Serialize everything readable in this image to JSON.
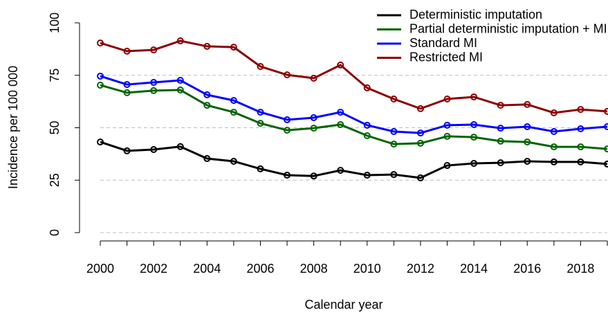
{
  "chart_data": {
    "type": "line",
    "x": [
      2000,
      2001,
      2002,
      2003,
      2004,
      2005,
      2006,
      2007,
      2008,
      2009,
      2010,
      2011,
      2012,
      2013,
      2014,
      2015,
      2016,
      2017,
      2018,
      2019
    ],
    "series": [
      {
        "name": "Deterministic imputation",
        "color": "#000000",
        "values": [
          43.2,
          39,
          39.6,
          41,
          35.3,
          34,
          30.4,
          27.4,
          27,
          29.7,
          27.4,
          27.7,
          26.1,
          32,
          33,
          33.3,
          34,
          33.7,
          33.7,
          32.7
        ]
      },
      {
        "name": "Partial deterministic imputation + MI",
        "color": "#006400",
        "values": [
          70.3,
          66.7,
          67.7,
          68,
          60.7,
          57.4,
          52.1,
          48.8,
          49.8,
          51.5,
          46.2,
          42.2,
          42.6,
          45.9,
          45.5,
          43.6,
          43.2,
          40.9,
          40.9,
          39.9
        ]
      },
      {
        "name": "Standard MI",
        "color": "#0000ff",
        "values": [
          74.6,
          70.6,
          71.6,
          72.6,
          65.7,
          63,
          57.4,
          53.8,
          54.8,
          57.4,
          51.2,
          48.2,
          47.5,
          51.2,
          51.5,
          49.8,
          50.5,
          48.2,
          49.5,
          50.5
        ]
      },
      {
        "name": "Restricted MI",
        "color": "#8b0000",
        "values": [
          90.4,
          86.5,
          87.1,
          91.4,
          88.8,
          88.4,
          79.2,
          75.2,
          73.6,
          79.9,
          69,
          63.7,
          59.1,
          63.7,
          64.7,
          60.7,
          61.1,
          57.1,
          58.7,
          57.8
        ]
      }
    ],
    "x_label": "Calendar year",
    "y_label": "Incidence per 100 000",
    "xlim": [
      2000,
      2019
    ],
    "xticks": [
      2000,
      2002,
      2004,
      2006,
      2008,
      2010,
      2012,
      2014,
      2016,
      2018
    ],
    "xminorticks": [
      2001,
      2003,
      2005,
      2007,
      2009,
      2011,
      2013,
      2015,
      2017,
      2019
    ],
    "ylim": [
      0,
      100
    ],
    "yticks": [
      0,
      25,
      50,
      75,
      100
    ],
    "hgrid": [
      0,
      25,
      50,
      75
    ],
    "legend": "top-right"
  }
}
